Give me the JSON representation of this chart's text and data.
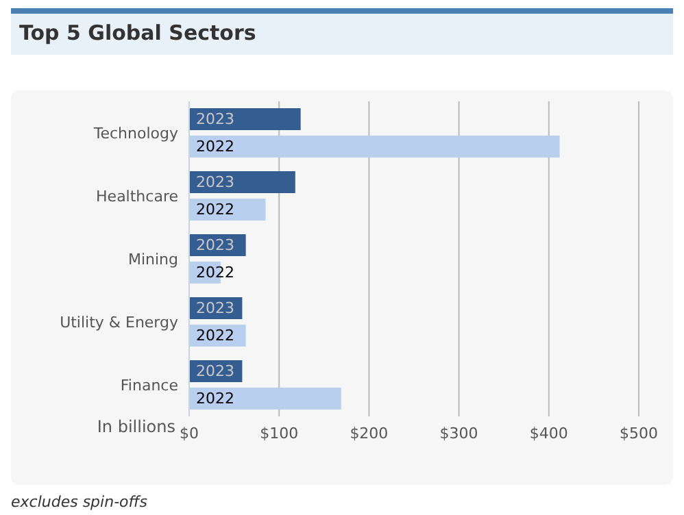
{
  "chart_data": {
    "type": "bar",
    "orientation": "horizontal",
    "title": "Top 5 Global Sectors",
    "xlabel": "In billions",
    "categories": [
      "Technology",
      "Healthcare",
      "Mining",
      "Utility & Energy",
      "Finance"
    ],
    "series": [
      {
        "name": "2023",
        "color": "#345e92",
        "values": [
          124,
          118,
          63,
          59,
          59
        ]
      },
      {
        "name": "2022",
        "color": "#b9cff0",
        "values": [
          412,
          85,
          35,
          63,
          169
        ]
      }
    ],
    "xlim": [
      0,
      500
    ],
    "xticks": [
      {
        "value": 0,
        "label": "$0"
      },
      {
        "value": 100,
        "label": "$100"
      },
      {
        "value": 200,
        "label": "$200"
      },
      {
        "value": 300,
        "label": "$300"
      },
      {
        "value": 400,
        "label": "$400"
      },
      {
        "value": 500,
        "label": "$500"
      }
    ],
    "grid": "x",
    "legend": false,
    "annotations": [
      "excludes spin-offs"
    ]
  }
}
